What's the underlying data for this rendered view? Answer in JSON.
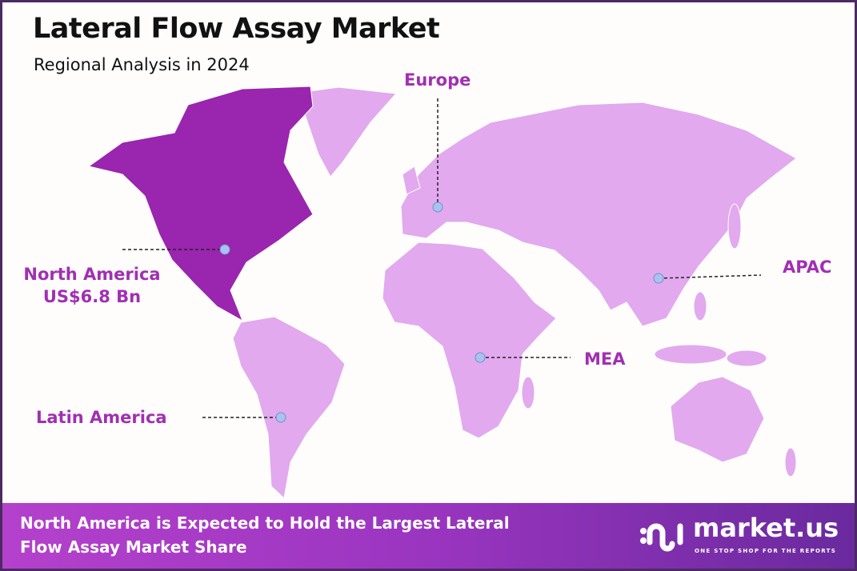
{
  "header": {
    "title": "Lateral Flow Assay Market",
    "subtitle": "Regional Analysis in 2024"
  },
  "colors": {
    "highlight_region": "#9a25ae",
    "other_regions": "#e2a9ee",
    "label": "#a12fb3",
    "marker": "#a9c3ee",
    "border": "#4b2a63"
  },
  "regions": [
    {
      "name": "North America",
      "value": "US$6.8 Bn",
      "highlighted": true
    },
    {
      "name": "Europe"
    },
    {
      "name": "APAC"
    },
    {
      "name": "MEA"
    },
    {
      "name": "Latin America"
    }
  ],
  "footer": {
    "line1": "North America is Expected to Hold the Largest Lateral",
    "line2": "Flow Assay Market Share",
    "logo_name": "market.us",
    "logo_tagline": "ONE STOP SHOP FOR THE REPORTS"
  }
}
